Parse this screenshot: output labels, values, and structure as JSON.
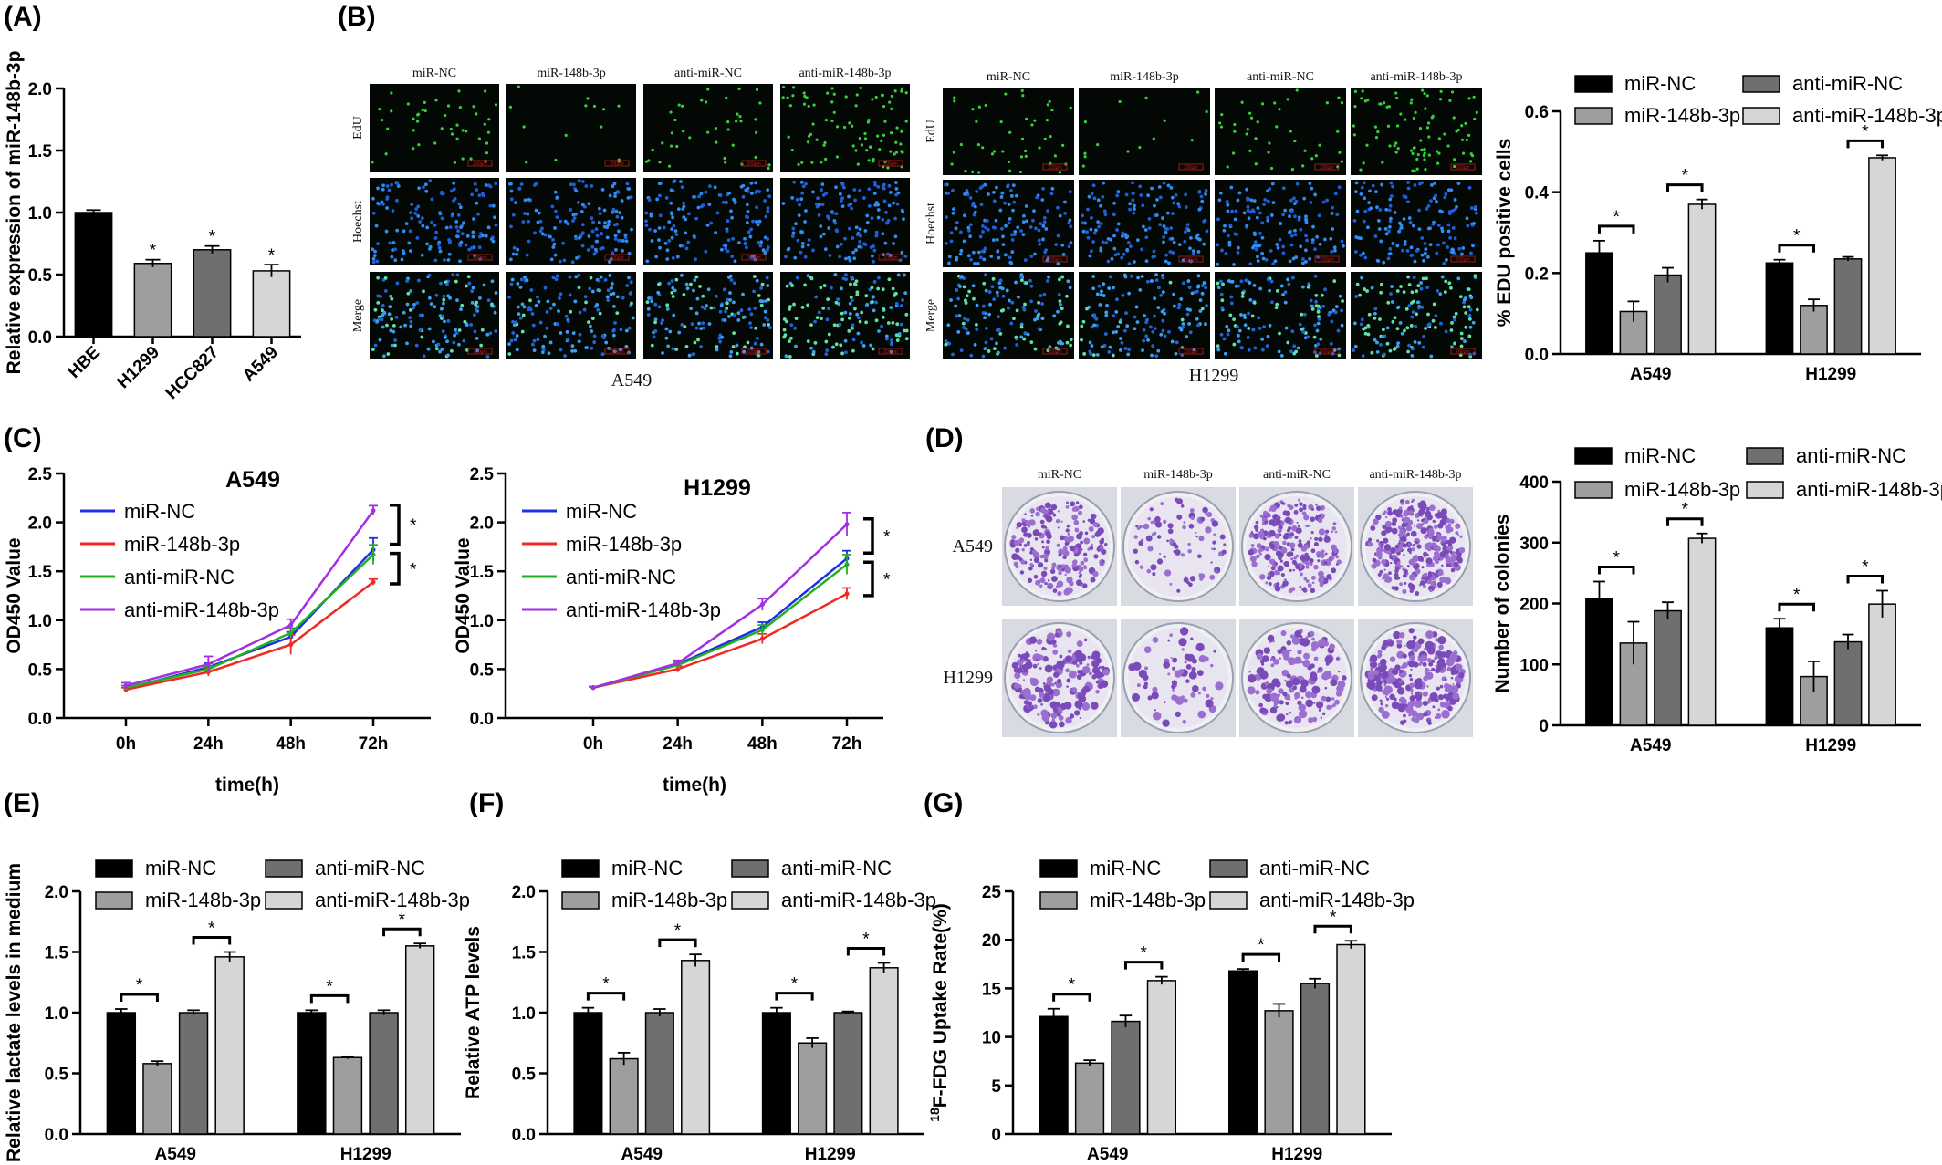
{
  "panel_labels": {
    "A": "(A)",
    "B": "(B)",
    "C": "(C)",
    "D": "(D)",
    "E": "(E)",
    "F": "(F)",
    "G": "(G)"
  },
  "colors": {
    "miR-NC": "#000000",
    "miR-148b-3p": "#9e9e9e",
    "anti-miR-NC": "#6f6f6f",
    "anti-miR-148b-3p": "#d6d6d6",
    "line_miR-NC": "#1f2fe6",
    "line_miR-148b-3p": "#ef2a22",
    "line_anti-miR-NC": "#22b022",
    "line_anti-miR-148b-3p": "#a32ee3"
  },
  "groups": [
    "miR-NC",
    "miR-148b-3p",
    "anti-miR-NC",
    "anti-miR-148b-3p"
  ],
  "edu_images": {
    "A549": {
      "columns": [
        "miR-NC",
        "miR-148b-3p",
        "anti-miR-NC",
        "anti-miR-148b-3p"
      ],
      "rows": [
        "EdU",
        "Hoechst",
        "Merge"
      ],
      "scale": "200μm",
      "caption": "A549"
    },
    "H1299": {
      "columns": [
        "miR-NC",
        "miR-148b-3p",
        "anti-miR-NC",
        "anti-miR-148b-3p"
      ],
      "rows": [
        "EdU",
        "Hoechst",
        "Merge"
      ],
      "scale": "200μm",
      "caption": "H1299"
    }
  },
  "colony_images": {
    "columns": [
      "miR-NC",
      "miR-148b-3p",
      "anti-miR-NC",
      "anti-miR-148b-3p"
    ],
    "rows": [
      "A549",
      "H1299"
    ]
  },
  "chart_data": [
    {
      "id": "A",
      "type": "bar",
      "ylabel": "Relative expression of miR-148b-3p",
      "categories": [
        "HBE",
        "H1299",
        "HCC827",
        "A549"
      ],
      "values": [
        1.0,
        0.59,
        0.7,
        0.53
      ],
      "errors": [
        0.02,
        0.03,
        0.03,
        0.05
      ],
      "significance": [
        "",
        "*",
        "*",
        "*"
      ],
      "ylim": [
        0,
        2.0
      ],
      "yticks": [
        "0.0",
        "0.5",
        "1.0",
        "1.5",
        "2.0"
      ],
      "bar_colors": [
        "#000000",
        "#9e9e9e",
        "#6f6f6f",
        "#d6d6d6"
      ]
    },
    {
      "id": "B",
      "type": "bar",
      "ylabel": "% EDU positive cells",
      "categories": [
        "A549",
        "H1299"
      ],
      "series": [
        {
          "name": "miR-NC",
          "values": [
            0.25,
            0.225
          ],
          "errors": [
            0.03,
            0.008
          ]
        },
        {
          "name": "miR-148b-3p",
          "values": [
            0.105,
            0.12
          ],
          "errors": [
            0.025,
            0.015
          ]
        },
        {
          "name": "anti-miR-NC",
          "values": [
            0.195,
            0.235
          ],
          "errors": [
            0.018,
            0.005
          ]
        },
        {
          "name": "anti-miR-148b-3p",
          "values": [
            0.37,
            0.485
          ],
          "errors": [
            0.012,
            0.006
          ]
        }
      ],
      "brackets": [
        [
          0,
          1
        ],
        [
          2,
          3
        ]
      ],
      "significance": "*",
      "ylim": [
        0,
        0.6
      ],
      "yticks": [
        "0.0",
        "0.2",
        "0.4",
        "0.6"
      ],
      "legend": "top"
    },
    {
      "id": "C1",
      "type": "line",
      "title": "A549",
      "xlabel": "time(h)",
      "ylabel": "OD450 Value",
      "x": [
        "0h",
        "24h",
        "48h",
        "72h"
      ],
      "series": [
        {
          "name": "miR-NC",
          "values": [
            0.3,
            0.52,
            0.83,
            1.72
          ],
          "errors": [
            0.03,
            0.04,
            0.05,
            0.12
          ]
        },
        {
          "name": "miR-148b-3p",
          "values": [
            0.29,
            0.47,
            0.75,
            1.39
          ],
          "errors": [
            0.02,
            0.04,
            0.1,
            0.03
          ]
        },
        {
          "name": "anti-miR-NC",
          "values": [
            0.31,
            0.5,
            0.87,
            1.67
          ],
          "errors": [
            0.02,
            0.03,
            0.05,
            0.1
          ]
        },
        {
          "name": "anti-miR-148b-3p",
          "values": [
            0.33,
            0.55,
            0.95,
            2.12
          ],
          "errors": [
            0.03,
            0.08,
            0.06,
            0.05
          ]
        }
      ],
      "significance": [
        "*",
        "*"
      ],
      "ylim": [
        0,
        2.5
      ],
      "yticks": [
        "0.0",
        "0.5",
        "1.0",
        "1.5",
        "2.0",
        "2.5"
      ],
      "legend": "top-left"
    },
    {
      "id": "C2",
      "type": "line",
      "title": "H1299",
      "xlabel": "time(h)",
      "ylabel": "OD450 Value",
      "x": [
        "0h",
        "24h",
        "48h",
        "72h"
      ],
      "series": [
        {
          "name": "miR-NC",
          "values": [
            0.31,
            0.55,
            0.93,
            1.63
          ],
          "errors": [
            0.01,
            0.03,
            0.05,
            0.08
          ]
        },
        {
          "name": "miR-148b-3p",
          "values": [
            0.31,
            0.5,
            0.81,
            1.27
          ],
          "errors": [
            0.01,
            0.03,
            0.05,
            0.06
          ]
        },
        {
          "name": "anti-miR-NC",
          "values": [
            0.31,
            0.54,
            0.9,
            1.57
          ],
          "errors": [
            0.01,
            0.03,
            0.05,
            0.1
          ]
        },
        {
          "name": "anti-miR-148b-3p",
          "values": [
            0.31,
            0.56,
            1.16,
            1.98
          ],
          "errors": [
            0.01,
            0.03,
            0.06,
            0.12
          ]
        }
      ],
      "significance": [
        "*",
        "*"
      ],
      "ylim": [
        0,
        2.5
      ],
      "yticks": [
        "0.0",
        "0.5",
        "1.0",
        "1.5",
        "2.0",
        "2.5"
      ],
      "legend": "top-left"
    },
    {
      "id": "D",
      "type": "bar",
      "ylabel": "Number of colonies",
      "categories": [
        "A549",
        "H1299"
      ],
      "series": [
        {
          "name": "miR-NC",
          "values": [
            208,
            160
          ],
          "errors": [
            28,
            15
          ]
        },
        {
          "name": "miR-148b-3p",
          "values": [
            135,
            80
          ],
          "errors": [
            35,
            25
          ]
        },
        {
          "name": "anti-miR-NC",
          "values": [
            188,
            137
          ],
          "errors": [
            14,
            12
          ]
        },
        {
          "name": "anti-miR-148b-3p",
          "values": [
            307,
            199
          ],
          "errors": [
            8,
            22
          ]
        }
      ],
      "brackets": [
        [
          0,
          1
        ],
        [
          2,
          3
        ]
      ],
      "significance": "*",
      "ylim": [
        0,
        400
      ],
      "yticks": [
        "0",
        "100",
        "200",
        "300",
        "400"
      ],
      "legend": "top"
    },
    {
      "id": "E",
      "type": "bar",
      "ylabel": "Relative lactate levels in medium",
      "categories": [
        "A549",
        "H1299"
      ],
      "series": [
        {
          "name": "miR-NC",
          "values": [
            1.0,
            1.0
          ],
          "errors": [
            0.03,
            0.02
          ]
        },
        {
          "name": "miR-148b-3p",
          "values": [
            0.58,
            0.63
          ],
          "errors": [
            0.02,
            0.01
          ]
        },
        {
          "name": "anti-miR-NC",
          "values": [
            1.0,
            1.0
          ],
          "errors": [
            0.02,
            0.02
          ]
        },
        {
          "name": "anti-miR-148b-3p",
          "values": [
            1.46,
            1.55
          ],
          "errors": [
            0.04,
            0.02
          ]
        }
      ],
      "brackets": [
        [
          0,
          1
        ],
        [
          2,
          3
        ]
      ],
      "significance": "*",
      "ylim": [
        0,
        2.0
      ],
      "yticks": [
        "0.0",
        "0.5",
        "1.0",
        "1.5",
        "2.0"
      ],
      "legend": "top"
    },
    {
      "id": "F",
      "type": "bar",
      "ylabel": "Relative ATP levels",
      "categories": [
        "A549",
        "H1299"
      ],
      "series": [
        {
          "name": "miR-NC",
          "values": [
            1.0,
            1.0
          ],
          "errors": [
            0.04,
            0.04
          ]
        },
        {
          "name": "miR-148b-3p",
          "values": [
            0.62,
            0.75
          ],
          "errors": [
            0.05,
            0.04
          ]
        },
        {
          "name": "anti-miR-NC",
          "values": [
            1.0,
            1.0
          ],
          "errors": [
            0.03,
            0.01
          ]
        },
        {
          "name": "anti-miR-148b-3p",
          "values": [
            1.43,
            1.37
          ],
          "errors": [
            0.05,
            0.04
          ]
        }
      ],
      "brackets": [
        [
          0,
          1
        ],
        [
          2,
          3
        ]
      ],
      "significance": "*",
      "ylim": [
        0,
        2.0
      ],
      "yticks": [
        "0.0",
        "0.5",
        "1.0",
        "1.5",
        "2.0"
      ],
      "legend": "top"
    },
    {
      "id": "G",
      "type": "bar",
      "ylabel": "F-FDG Uptake Rate(%)",
      "ylabel_sup": "18",
      "categories": [
        "A549",
        "H1299"
      ],
      "series": [
        {
          "name": "miR-NC",
          "values": [
            12.1,
            16.8
          ],
          "errors": [
            0.8,
            0.2
          ]
        },
        {
          "name": "miR-148b-3p",
          "values": [
            7.3,
            12.7
          ],
          "errors": [
            0.3,
            0.7
          ]
        },
        {
          "name": "anti-miR-NC",
          "values": [
            11.6,
            15.5
          ],
          "errors": [
            0.6,
            0.5
          ]
        },
        {
          "name": "anti-miR-148b-3p",
          "values": [
            15.8,
            19.5
          ],
          "errors": [
            0.4,
            0.4
          ]
        }
      ],
      "brackets": [
        [
          0,
          1
        ],
        [
          2,
          3
        ]
      ],
      "significance": "*",
      "ylim": [
        0,
        25
      ],
      "yticks": [
        "0",
        "5",
        "10",
        "15",
        "20",
        "25"
      ],
      "legend": "top"
    }
  ]
}
